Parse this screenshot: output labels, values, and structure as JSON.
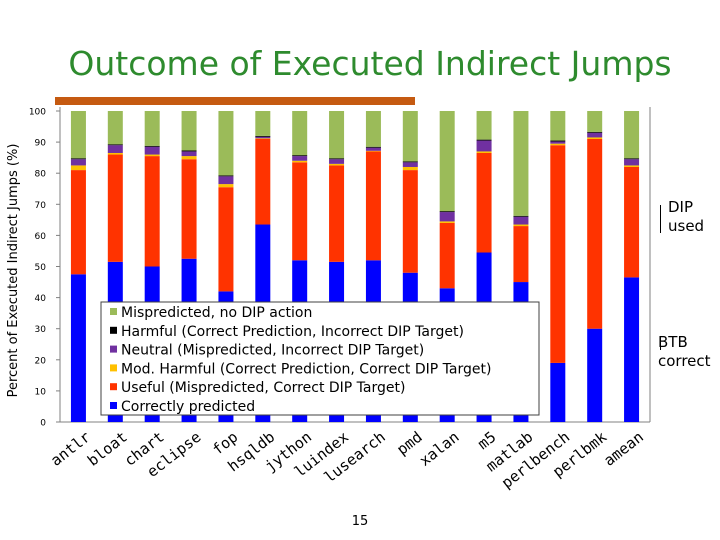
{
  "title": "Outcome of Executed Indirect Jumps",
  "page_number": "15",
  "annotations": {
    "dip_used": [
      "DIP",
      "used"
    ],
    "btb_correct": [
      "BTB",
      "correct"
    ]
  },
  "colors": {
    "mispredicted_no_dip": "#9bbb59",
    "harmful": "#000000",
    "neutral": "#7030a0",
    "mod_harmful": "#ffc000",
    "useful": "#ff3300",
    "correct": "#0000ff",
    "title": "#2e8b2e",
    "title_rule": "#c55a11"
  },
  "chart_data": {
    "type": "bar",
    "stacked": true,
    "title": "Outcome of Executed Indirect Jumps",
    "xlabel": "",
    "ylabel": "Percent of Executed Indirect Jumps (%)",
    "ylim": [
      0,
      100
    ],
    "yticks": [
      0,
      10,
      20,
      30,
      40,
      50,
      60,
      70,
      80,
      90,
      100
    ],
    "grid": false,
    "legend_position": "bottom-left inside plot",
    "categories": [
      "antlr",
      "bloat",
      "chart",
      "eclipse",
      "fop",
      "hsqldb",
      "jython",
      "luindex",
      "lusearch",
      "pmd",
      "xalan",
      "m5",
      "matlab",
      "perlbench",
      "perlbmk",
      "amean"
    ],
    "series": [
      {
        "name": "Correctly predicted",
        "color": "#0000ff",
        "values": [
          47.5,
          51.5,
          50,
          52.5,
          42,
          63.5,
          52,
          51.5,
          52,
          48,
          43,
          54.5,
          45,
          19,
          30,
          46.5
        ]
      },
      {
        "name": "Useful (Mispredicted, Correct DIP Target)",
        "color": "#ff3300",
        "values": [
          33.5,
          34.5,
          35.5,
          32,
          33.5,
          27.5,
          31.5,
          31,
          35,
          33,
          21,
          32,
          18,
          70,
          61,
          35.5
        ]
      },
      {
        "name": "Mod. Harmful (Correct Prediction, Correct DIP Target)",
        "color": "#ffc000",
        "values": [
          1.5,
          0.5,
          0.5,
          1,
          1,
          0.2,
          0.5,
          0.5,
          0.2,
          1,
          0.5,
          0.5,
          0.5,
          0.5,
          0.5,
          0.5
        ]
      },
      {
        "name": "Neutral (Mispredicted, Incorrect DIP Target)",
        "color": "#7030a0",
        "values": [
          2,
          2.5,
          2.5,
          1.5,
          2.5,
          0.5,
          1.5,
          1.5,
          1,
          1.5,
          3,
          3.5,
          2.5,
          0.7,
          1.5,
          2
        ]
      },
      {
        "name": "Harmful (Correct Prediction, Incorrect DIP Target)",
        "color": "#000000",
        "values": [
          0.3,
          0.3,
          0.3,
          0.3,
          0.3,
          0.3,
          0.3,
          0.3,
          0.3,
          0.3,
          0.3,
          0.3,
          0.3,
          0.3,
          0.3,
          0.3
        ]
      },
      {
        "name": "Mispredicted, no DIP action",
        "color": "#9bbb59",
        "values": [
          15.2,
          10.7,
          11.2,
          12.7,
          20.7,
          8,
          14.2,
          15.2,
          11.5,
          16.2,
          32.2,
          9.2,
          33.7,
          9.5,
          6.7,
          15.2
        ]
      }
    ],
    "legend_order": [
      "Mispredicted, no DIP action",
      "Harmful (Correct Prediction, Incorrect DIP Target)",
      "Neutral (Mispredicted, Incorrect DIP Target)",
      "Mod. Harmful (Correct Prediction, Correct DIP Target)",
      "Useful (Mispredicted, Correct DIP Target)",
      "Correctly predicted"
    ]
  }
}
